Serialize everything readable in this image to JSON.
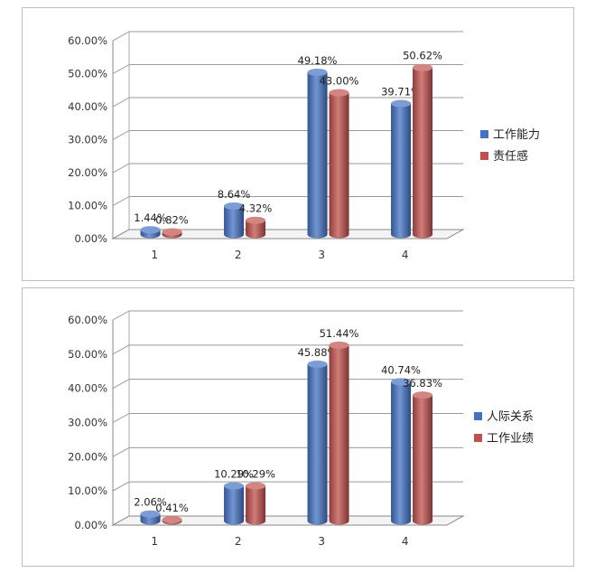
{
  "chart_data": [
    {
      "type": "bar",
      "categories": [
        "1",
        "2",
        "3",
        "4"
      ],
      "series": [
        {
          "name": "工作能力",
          "values": [
            1.44,
            8.64,
            49.18,
            39.71
          ],
          "labels": [
            "1.44%",
            "8.64%",
            "49.18%",
            "39.71%"
          ],
          "color": "#4472C4"
        },
        {
          "name": "责任感",
          "values": [
            0.82,
            4.32,
            43.0,
            50.62
          ],
          "labels": [
            "0.82%",
            "4.32%",
            "43.00%",
            "50.62%"
          ],
          "color": "#C0504D"
        }
      ],
      "ylim": [
        0,
        60
      ],
      "yticks": [
        "0.00%",
        "10.00%",
        "20.00%",
        "30.00%",
        "40.00%",
        "50.00%",
        "60.00%"
      ],
      "grid": true,
      "legend": "right",
      "style": "3d-cylinder"
    },
    {
      "type": "bar",
      "categories": [
        "1",
        "2",
        "3",
        "4"
      ],
      "series": [
        {
          "name": "人际关系",
          "values": [
            2.06,
            10.29,
            45.88,
            40.74
          ],
          "labels": [
            "2.06%",
            "10.29%",
            "45.88%",
            "40.74%"
          ],
          "color": "#4472C4"
        },
        {
          "name": "工作业绩",
          "values": [
            0.41,
            10.29,
            51.44,
            36.83
          ],
          "labels": [
            "0.41%",
            "10.29%",
            "51.44%",
            "36.83%"
          ],
          "color": "#C0504D"
        }
      ],
      "ylim": [
        0,
        60
      ],
      "yticks": [
        "0.00%",
        "10.00%",
        "20.00%",
        "30.00%",
        "40.00%",
        "50.00%",
        "60.00%"
      ],
      "grid": true,
      "legend": "right",
      "style": "3d-cylinder"
    }
  ]
}
